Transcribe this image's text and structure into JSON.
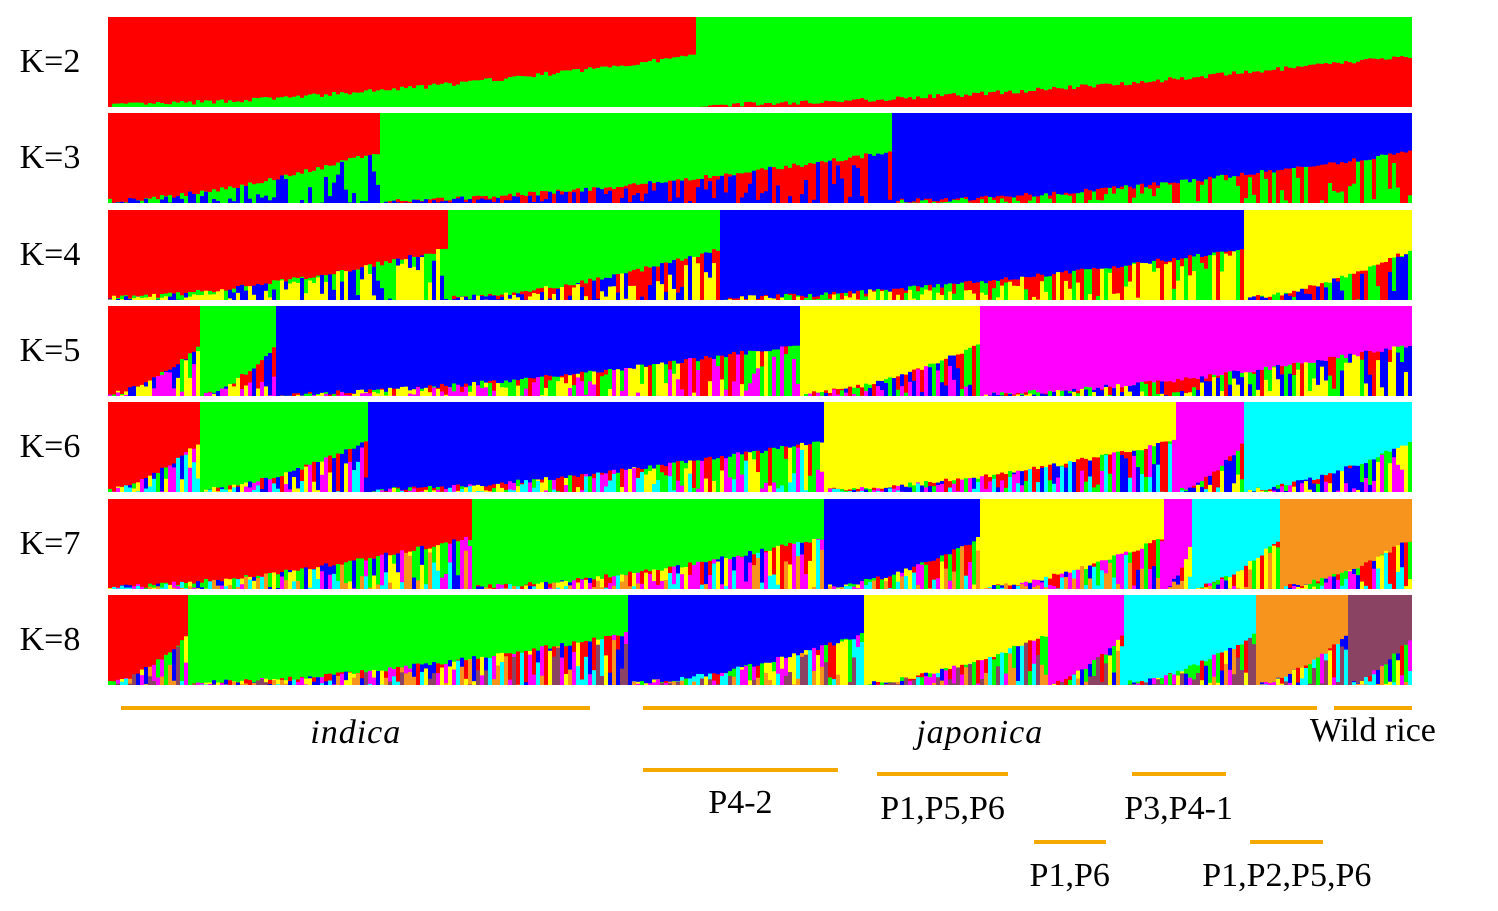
{
  "chart_data": {
    "type": "stacked-bar",
    "panels": [
      {
        "label": "K=2",
        "clusters": [
          {
            "color": "red",
            "share": 0.45
          },
          {
            "color": "green",
            "share": 0.55
          }
        ]
      },
      {
        "label": "K=3",
        "clusters": [
          {
            "color": "red",
            "share": 0.21
          },
          {
            "color": "green",
            "share": 0.39
          },
          {
            "color": "blue",
            "share": 0.4
          }
        ]
      },
      {
        "label": "K=4",
        "clusters": [
          {
            "color": "red",
            "share": 0.26
          },
          {
            "color": "green",
            "share": 0.21
          },
          {
            "color": "blue",
            "share": 0.4
          },
          {
            "color": "yellow",
            "share": 0.13
          }
        ]
      },
      {
        "label": "K=5",
        "clusters": [
          {
            "color": "red",
            "share": 0.07
          },
          {
            "color": "green",
            "share": 0.06
          },
          {
            "color": "blue",
            "share": 0.4
          },
          {
            "color": "yellow",
            "share": 0.14
          },
          {
            "color": "magenta",
            "share": 0.33
          }
        ]
      },
      {
        "label": "K=6",
        "clusters": [
          {
            "color": "red",
            "share": 0.07
          },
          {
            "color": "green",
            "share": 0.13
          },
          {
            "color": "blue",
            "share": 0.35
          },
          {
            "color": "yellow",
            "share": 0.27
          },
          {
            "color": "magenta",
            "share": 0.05
          },
          {
            "color": "cyan",
            "share": 0.13
          }
        ]
      },
      {
        "label": "K=7",
        "clusters": [
          {
            "color": "red",
            "share": 0.28
          },
          {
            "color": "green",
            "share": 0.27
          },
          {
            "color": "blue",
            "share": 0.12
          },
          {
            "color": "yellow",
            "share": 0.14
          },
          {
            "color": "magenta",
            "share": 0.02
          },
          {
            "color": "cyan",
            "share": 0.07
          },
          {
            "color": "orange",
            "share": 0.1
          }
        ]
      },
      {
        "label": "K=8",
        "clusters": [
          {
            "color": "red",
            "share": 0.06
          },
          {
            "color": "green",
            "share": 0.34
          },
          {
            "color": "blue",
            "share": 0.18
          },
          {
            "color": "yellow",
            "share": 0.14
          },
          {
            "color": "magenta",
            "share": 0.06
          },
          {
            "color": "cyan",
            "share": 0.1
          },
          {
            "color": "orange",
            "share": 0.07
          },
          {
            "color": "purple",
            "share": 0.05
          }
        ]
      }
    ],
    "groups": [
      {
        "label": "indica",
        "range": [
          0.01,
          0.37
        ],
        "italic": true
      },
      {
        "label": "japonica",
        "range": [
          0.41,
          0.927
        ],
        "italic": true
      },
      {
        "label": "Wild rice",
        "range": [
          0.94,
          1.0
        ],
        "italic": false
      },
      {
        "label": "P4-2",
        "range": [
          0.41,
          0.56
        ],
        "italic": false
      },
      {
        "label": "P1,P5,P6",
        "range": [
          0.59,
          0.69
        ],
        "italic": false
      },
      {
        "label": "P1,P6",
        "range": [
          0.71,
          0.765
        ],
        "italic": false
      },
      {
        "label": "P3,P4-1",
        "range": [
          0.785,
          0.857
        ],
        "italic": false
      },
      {
        "label": "P1,P2,P5,P6",
        "range": [
          0.876,
          0.932
        ],
        "italic": false
      }
    ],
    "colors": {
      "red": "#ff0000",
      "green": "#00ff00",
      "blue": "#0000ff",
      "yellow": "#ffff00",
      "magenta": "#ff00ff",
      "cyan": "#00ffff",
      "orange": "#f7941d",
      "purple": "#8b4363",
      "group_line": "#f5a800"
    }
  }
}
